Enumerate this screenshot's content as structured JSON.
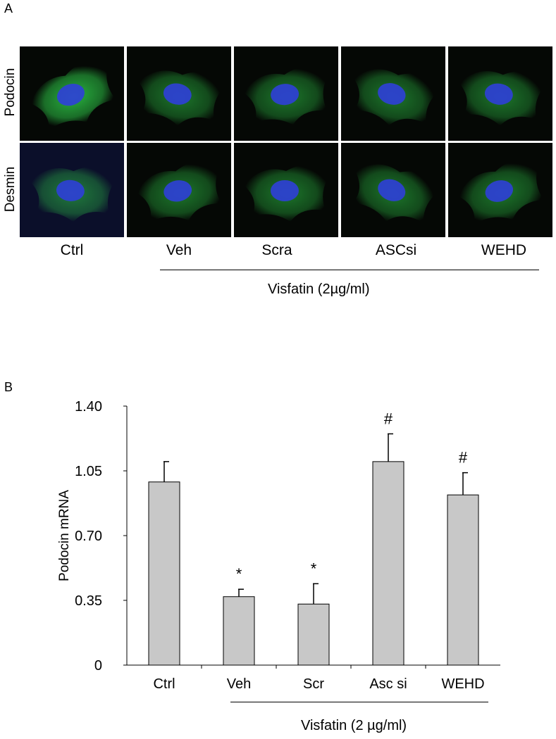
{
  "panel_a": {
    "label": "A",
    "row_labels": [
      "Podocin",
      "Desmin"
    ],
    "column_labels": [
      "Ctrl",
      "Veh",
      "Scra",
      "ASCsi",
      "WEHD"
    ],
    "group_label": "Visfatin (2µg/ml)",
    "colors": {
      "stain": "#2fd04a",
      "nucleus": "#2f3fd8",
      "background": "#050805"
    }
  },
  "panel_b": {
    "label": "B",
    "group_label": "Visfatin (2 µg/ml)"
  },
  "chart_data": {
    "type": "bar",
    "categories": [
      "Ctrl",
      "Veh",
      "Scr",
      "Asc si",
      "WEHD"
    ],
    "values": [
      0.99,
      0.37,
      0.33,
      1.1,
      0.92
    ],
    "errors": [
      0.11,
      0.04,
      0.11,
      0.15,
      0.12
    ],
    "annotations": [
      "",
      "*",
      "*",
      "#",
      "#"
    ],
    "xlabel": "",
    "ylabel": "Podocin mRNA",
    "yticks": [
      "0",
      "0.35",
      "0.70",
      "1.05",
      "1.40"
    ],
    "ylim": [
      0,
      1.4
    ],
    "grid": false,
    "bar_color": "#c8c8c8"
  }
}
